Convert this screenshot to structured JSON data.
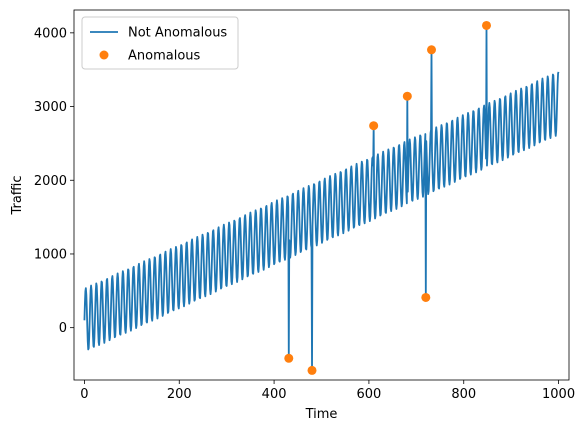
{
  "chart_data": {
    "type": "line",
    "xlabel": "Time",
    "ylabel": "Traffic",
    "xlim": [
      -22,
      1022
    ],
    "ylim": [
      -710,
      4310
    ],
    "grid": false,
    "legend_position": "top-left",
    "xticks": [
      0,
      200,
      400,
      600,
      800,
      1000
    ],
    "yticks": [
      0,
      1000,
      2000,
      3000,
      4000
    ],
    "xtick_labels": [
      "0",
      "200",
      "400",
      "600",
      "800",
      "1000"
    ],
    "ytick_labels": [
      "0",
      "1000",
      "2000",
      "3000",
      "4000"
    ],
    "series": [
      {
        "name": "Not Anomalous",
        "kind": "line",
        "color": "#1f77b4",
        "trend": {
          "start": 100,
          "end": 3050
        },
        "seasonality": {
          "period": 11.2,
          "amplitude": 430
        },
        "x_range": [
          0,
          1000
        ]
      },
      {
        "name": "Anomalous",
        "kind": "scatter",
        "color": "#ff7f0e",
        "points": [
          {
            "x": 431,
            "y": -415
          },
          {
            "x": 480,
            "y": -580
          },
          {
            "x": 610,
            "y": 2740
          },
          {
            "x": 681,
            "y": 3140
          },
          {
            "x": 720,
            "y": 410
          },
          {
            "x": 732,
            "y": 3770
          },
          {
            "x": 848,
            "y": 4100
          }
        ]
      }
    ]
  }
}
